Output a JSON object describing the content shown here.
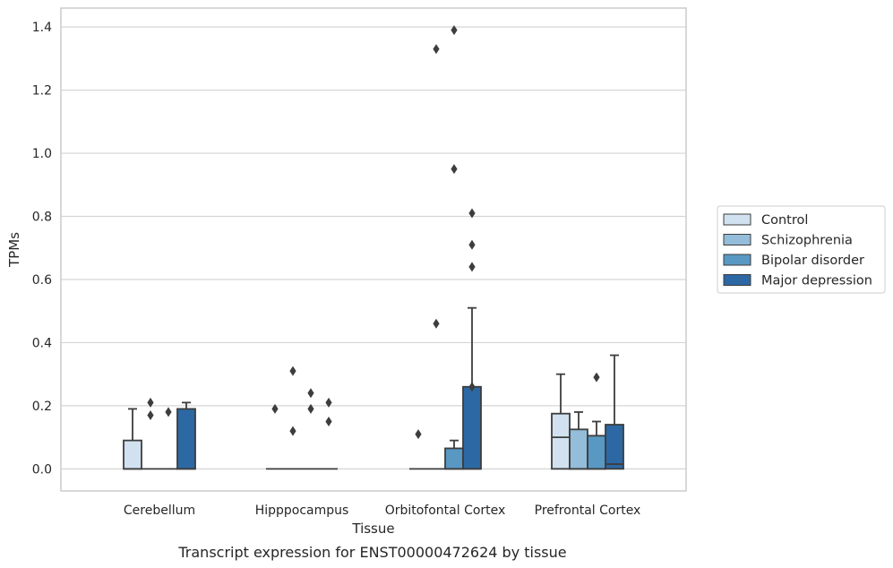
{
  "caption": "Transcript expression for ENST00000472624 by tissue",
  "chart_data": {
    "type": "box",
    "xlabel": "Tissue",
    "ylabel": "TPMs",
    "ylim": [
      -0.07,
      1.46
    ],
    "yticks": [
      "0.0",
      "0.2",
      "0.4",
      "0.6",
      "0.8",
      "1.0",
      "1.2",
      "1.4"
    ],
    "grid": "horizontal",
    "legend_position": "right",
    "categories": [
      "Cerebellum",
      "Hipppocampus",
      "Orbitofontal Cortex",
      "Prefrontal Cortex"
    ],
    "series": [
      {
        "name": "Control",
        "color": "#d1e1f0",
        "boxes": [
          {
            "min": 0,
            "q1": 0,
            "median": 0,
            "q3": 0.09,
            "max": 0.19,
            "outliers": []
          },
          {
            "min": 0,
            "q1": 0,
            "median": 0,
            "q3": 0,
            "max": 0,
            "outliers": [
              0.19
            ]
          },
          {
            "min": 0,
            "q1": 0,
            "median": 0,
            "q3": 0,
            "max": 0,
            "outliers": [
              0.11
            ]
          },
          {
            "min": 0,
            "q1": 0,
            "median": 0.1,
            "q3": 0.175,
            "max": 0.3,
            "outliers": []
          }
        ]
      },
      {
        "name": "Schizophrenia",
        "color": "#93bdd9",
        "boxes": [
          {
            "min": 0,
            "q1": 0,
            "median": 0,
            "q3": 0,
            "max": 0,
            "outliers": [
              0.17,
              0.21
            ]
          },
          {
            "min": 0,
            "q1": 0,
            "median": 0,
            "q3": 0,
            "max": 0,
            "outliers": [
              0.12,
              0.31
            ]
          },
          {
            "min": 0,
            "q1": 0,
            "median": 0,
            "q3": 0,
            "max": 0,
            "outliers": [
              0.46,
              1.33
            ]
          },
          {
            "min": 0,
            "q1": 0,
            "median": 0,
            "q3": 0.125,
            "max": 0.18,
            "outliers": []
          }
        ]
      },
      {
        "name": "Bipolar disorder",
        "color": "#5898c3",
        "boxes": [
          {
            "min": 0,
            "q1": 0,
            "median": 0,
            "q3": 0,
            "max": 0,
            "outliers": [
              0.18
            ]
          },
          {
            "min": 0,
            "q1": 0,
            "median": 0,
            "q3": 0,
            "max": 0,
            "outliers": [
              0.19,
              0.24
            ]
          },
          {
            "min": 0,
            "q1": 0,
            "median": 0,
            "q3": 0.065,
            "max": 0.09,
            "outliers": [
              0.95,
              1.39
            ]
          },
          {
            "min": 0,
            "q1": 0,
            "median": 0,
            "q3": 0.105,
            "max": 0.15,
            "outliers": [
              0.29
            ]
          }
        ]
      },
      {
        "name": "Major depression",
        "color": "#2c68a3",
        "boxes": [
          {
            "min": 0,
            "q1": 0,
            "median": 0,
            "q3": 0.19,
            "max": 0.21,
            "outliers": []
          },
          {
            "min": 0,
            "q1": 0,
            "median": 0,
            "q3": 0,
            "max": 0,
            "outliers": [
              0.15,
              0.21
            ]
          },
          {
            "min": 0,
            "q1": 0,
            "median": 0,
            "q3": 0.26,
            "max": 0.51,
            "outliers": [
              0.26,
              0.64,
              0.71,
              0.81
            ]
          },
          {
            "min": 0,
            "q1": 0,
            "median": 0.015,
            "q3": 0.14,
            "max": 0.36,
            "outliers": []
          }
        ]
      }
    ]
  }
}
